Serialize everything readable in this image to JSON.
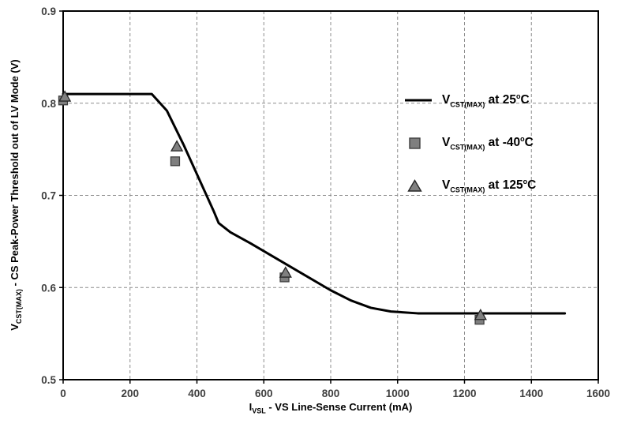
{
  "chart_data": {
    "type": "line",
    "title": "",
    "xlabel_parts": {
      "prefix": "I",
      "sub": "VSL",
      "rest": " - VS Line-Sense Current (mA)"
    },
    "ylabel_parts": {
      "prefix": "V",
      "sub": "CST(MAX)",
      "rest": " - CS Peak-Power Threshold out of LV Mode (V)"
    },
    "xlim": [
      0,
      1600
    ],
    "ylim": [
      0.5,
      0.9
    ],
    "xticks": [
      0,
      200,
      400,
      600,
      800,
      1000,
      1200,
      1400,
      1600
    ],
    "yticks": [
      0.5,
      0.6,
      0.7,
      0.8,
      0.9
    ],
    "grid": "dashed",
    "legend_position": "inside-top-right",
    "series": [
      {
        "name_parts": {
          "prefix": "V",
          "sub": "CST(MAX)",
          "mid": " at 25",
          "sup": "o",
          "end": "C"
        },
        "type": "line",
        "color": "#000000",
        "width": 3,
        "points": [
          [
            0,
            0.81
          ],
          [
            265,
            0.81
          ],
          [
            310,
            0.792
          ],
          [
            360,
            0.755
          ],
          [
            410,
            0.715
          ],
          [
            450,
            0.683
          ],
          [
            465,
            0.67
          ],
          [
            500,
            0.66
          ],
          [
            560,
            0.648
          ],
          [
            640,
            0.631
          ],
          [
            720,
            0.614
          ],
          [
            800,
            0.597
          ],
          [
            860,
            0.586
          ],
          [
            920,
            0.578
          ],
          [
            980,
            0.574
          ],
          [
            1060,
            0.572
          ],
          [
            1250,
            0.572
          ],
          [
            1500,
            0.572
          ]
        ]
      },
      {
        "name_parts": {
          "prefix": "V",
          "sub": "CST(MAX)",
          "mid": " at -40",
          "sup": "o",
          "end": "C"
        },
        "type": "scatter",
        "marker": "square",
        "fill": "#7f7f7f",
        "stroke": "#3f3f3f",
        "points": [
          [
            0,
            0.803
          ],
          [
            335,
            0.737
          ],
          [
            662,
            0.611
          ],
          [
            1245,
            0.565
          ]
        ]
      },
      {
        "name_parts": {
          "prefix": "V",
          "sub": "CST(MAX)",
          "mid": " at 125",
          "sup": "o",
          "end": "C"
        },
        "type": "scatter",
        "marker": "triangle",
        "fill": "#808080",
        "stroke": "#262626",
        "points": [
          [
            5,
            0.807
          ],
          [
            340,
            0.753
          ],
          [
            665,
            0.616
          ],
          [
            1248,
            0.57
          ]
        ]
      }
    ]
  },
  "colors": {
    "grid": "#8c8c8c",
    "axis": "#000000",
    "tick_label": "#3f3f3f",
    "background": "#ffffff"
  }
}
